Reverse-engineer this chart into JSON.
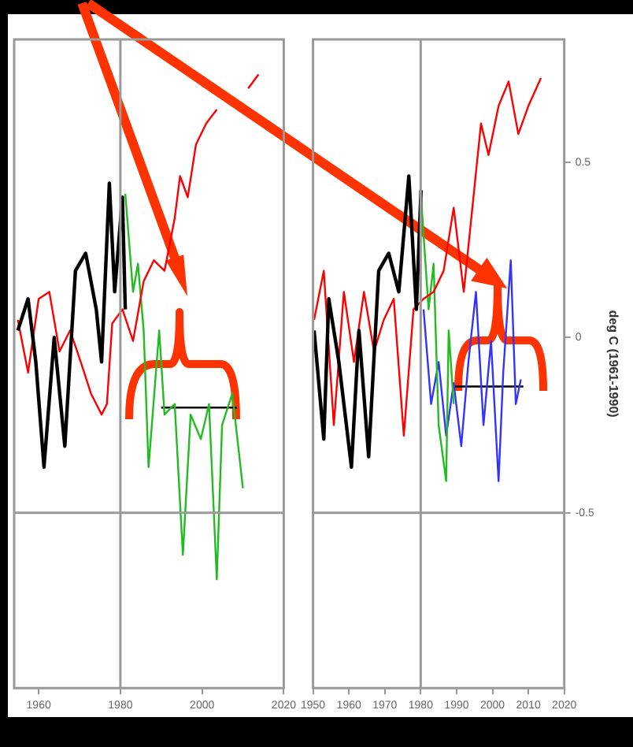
{
  "chart_data": [
    {
      "type": "line",
      "marker": "none",
      "grid": false,
      "tick_labels": "x",
      "xlim": [
        1954,
        2020
      ],
      "xticks": [
        1960,
        1980,
        2000,
        2020
      ],
      "ylim": [
        -1,
        0.85
      ],
      "yticks": [
        -0.5,
        0,
        0.5
      ],
      "ref_lines": [
        {
          "axis": "x",
          "value": 1980,
          "color": "#999999"
        },
        {
          "axis": "y",
          "value": -0.5,
          "color": "#999999"
        }
      ],
      "series": [
        {
          "color": "#000000",
          "x": [
            1954.9,
            1957.4,
            1959.3,
            1961.3,
            1963.8,
            1966.4,
            1969,
            1971.5,
            1974.1,
            1975.4,
            1977.3,
            1978.6,
            1980.5,
            1981.2
          ],
          "values": [
            0.02,
            0.11,
            -0.07,
            -0.37,
            0,
            -0.31,
            0.19,
            0.24,
            0.08,
            -0.07,
            0.44,
            0.13,
            0.4,
            0.08
          ]
        },
        {
          "color": "#ff0000",
          "x": [
            1954.9,
            1957.4,
            1960,
            1962.6,
            1965.1,
            1967.7,
            1970.3,
            1972.8,
            1975.4,
            1976.7,
            1978,
            1980.5,
            1983.1,
            1985.7,
            1988.2,
            1990.8,
            1993.3,
            1994.6,
            1996.5,
            1998.5,
            2001,
            2003.6,
            2006.2,
            2008.7,
            2011.3,
            2013.8
          ],
          "values": [
            0.05,
            -0.1,
            0.11,
            0.13,
            -0.04,
            0.02,
            -0.07,
            -0.16,
            -0.22,
            -0.19,
            0.04,
            0.08,
            -0.01,
            0.16,
            0.22,
            0.19,
            0.34,
            0.46,
            0.4,
            0.55,
            0.61,
            0.65,
            null,
            null,
            0.71,
            0.75
          ]
        },
        {
          "color": "#22bb22",
          "x": [
            1981.2,
            1983.1,
            1984.3,
            1985.7,
            1986.9,
            1989.5,
            1990.8,
            1993.3,
            1995.3,
            1997.2,
            1999.7,
            2001.7,
            2003.6,
            2004.9,
            2007.4,
            2010
          ],
          "values": [
            0.41,
            0.13,
            0.21,
            0.02,
            -0.37,
            0.02,
            -0.22,
            -0.19,
            -0.62,
            -0.22,
            -0.29,
            -0.19,
            -0.69,
            -0.25,
            -0.16,
            -0.43
          ]
        },
        {
          "color": "#000000",
          "x": [
            1990,
            2008.5
          ],
          "values": [
            -0.2,
            -0.2
          ]
        }
      ]
    },
    {
      "type": "line",
      "marker": "none",
      "grid": false,
      "ylabel": "deg C (1961-1990)",
      "xlim": [
        1950,
        2020
      ],
      "xticks": [
        1950,
        1960,
        1970,
        1980,
        1990,
        2000,
        2010,
        2020
      ],
      "ylim": [
        -1,
        0.85
      ],
      "yticks": [
        -0.5,
        0,
        0.5
      ],
      "ref_lines": [
        {
          "axis": "x",
          "value": 1980,
          "color": "#999999"
        },
        {
          "axis": "y",
          "value": -0.5,
          "color": "#999999"
        }
      ],
      "series": [
        {
          "color": "#000000",
          "x": [
            1950.3,
            1953,
            1954.4,
            1957.2,
            1960.7,
            1962.8,
            1965.5,
            1968.3,
            1971.1,
            1973.9,
            1976.7,
            1978.8,
            1980.1
          ],
          "values": [
            0.02,
            -0.29,
            0.11,
            -0.07,
            -0.37,
            0.02,
            -0.34,
            0.19,
            0.24,
            0.13,
            0.46,
            0.08,
            0.42
          ]
        },
        {
          "color": "#ff0000",
          "x": [
            1950.3,
            1953,
            1955.8,
            1958.6,
            1961.4,
            1964.2,
            1967,
            1969.7,
            1972.5,
            1975.3,
            1978,
            1980.8,
            1983.6,
            1986.4,
            1989.2,
            1992,
            1994.7,
            1996.8,
            1998.9,
            2001.7,
            2004.5,
            2007.2,
            2010,
            2013.5
          ],
          "values": [
            0.05,
            0.19,
            -0.25,
            0.13,
            -0.07,
            0.13,
            -0.04,
            0.05,
            0.11,
            -0.28,
            0.08,
            0.11,
            0.13,
            0.19,
            0.37,
            0.13,
            0.4,
            0.61,
            0.52,
            0.66,
            0.73,
            0.58,
            0.66,
            0.74
          ]
        },
        {
          "color": "#22bb22",
          "x": [
            1980.1,
            1982.2,
            1983.6,
            1985,
            1987.1,
            1987.8,
            1989.2
          ],
          "values": [
            0.4,
            0.08,
            0.21,
            -0.25,
            -0.41,
            0.02,
            -0.19
          ]
        },
        {
          "color": "#3333ff",
          "x": [
            1980.8,
            1982.9,
            1985,
            1987.1,
            1989.2,
            1991.3,
            1993.3,
            1995.4,
            1997.5,
            1999.6,
            2001.7,
            2003,
            2005.1,
            2006.5,
            2007.9
          ],
          "values": [
            0.08,
            -0.19,
            -0.07,
            -0.28,
            -0.13,
            -0.31,
            -0.07,
            0.13,
            -0.25,
            -0.01,
            -0.41,
            -0.1,
            0.22,
            -0.19,
            -0.12
          ]
        },
        {
          "color": "#000000",
          "x": [
            1989.2,
            2008.6
          ],
          "values": [
            -0.14,
            -0.14
          ]
        }
      ]
    }
  ]
}
